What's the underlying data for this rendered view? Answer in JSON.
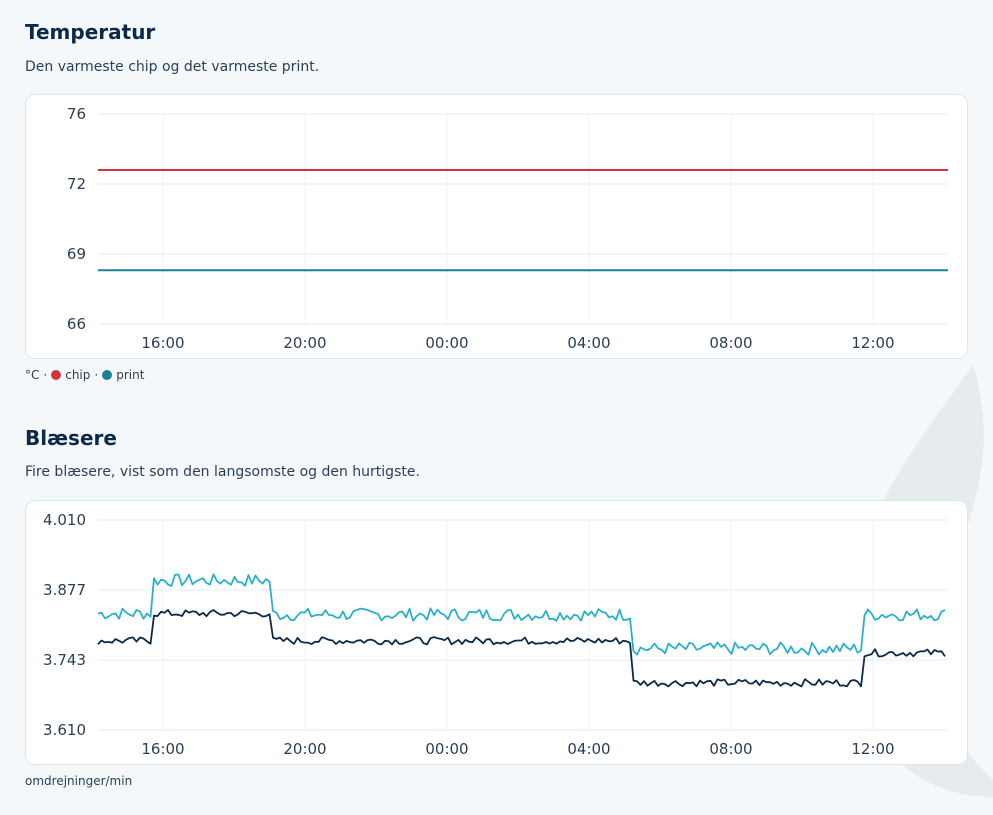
{
  "temperature": {
    "title": "Temperatur",
    "subtitle": "Den varmeste chip og det varmeste print.",
    "legend": {
      "unit": "°C",
      "sep": "·",
      "items": [
        {
          "label": "chip",
          "color": "#d0343f"
        },
        {
          "label": "print",
          "color": "#1b7f98"
        }
      ]
    }
  },
  "fans": {
    "title": "Blæsere",
    "subtitle": "Fire blæsere, vist som den langsomste og den hurtigste.",
    "unit_label": "omdrejninger/min"
  },
  "chart_data": [
    {
      "type": "line",
      "title": "Temperatur",
      "xlabel": "",
      "ylabel": "",
      "x_ticks": [
        "16:00",
        "20:00",
        "00:00",
        "04:00",
        "08:00",
        "12:00"
      ],
      "y_ticks": [
        "66",
        "69",
        "72",
        "76"
      ],
      "ylim": [
        66,
        75
      ],
      "grid": true,
      "series": [
        {
          "name": "chip",
          "color": "#d0343f",
          "values": [
            72.8,
            72.8
          ]
        },
        {
          "name": "print",
          "color": "#1b7f98",
          "values": [
            68.3,
            68.3
          ]
        }
      ]
    },
    {
      "type": "line",
      "title": "Blæsere",
      "xlabel": "",
      "ylabel": "omdrejninger/min",
      "x_ticks": [
        "16:00",
        "20:00",
        "00:00",
        "04:00",
        "08:00",
        "12:00"
      ],
      "y_ticks": [
        "3.610",
        "3.743",
        "3.877",
        "4.010"
      ],
      "ylim": [
        3610,
        4010
      ],
      "grid": true,
      "series": [
        {
          "color": "#2bb0c9",
          "segments": [
            {
              "from": "14:15",
              "to": "15:40",
              "value": 3832
            },
            {
              "from": "15:40",
              "to": "19:05",
              "value": 3895
            },
            {
              "from": "19:05",
              "to": "05:15",
              "value": 3830
            },
            {
              "from": "05:15",
              "to": "11:40",
              "value": 3765
            },
            {
              "from": "11:40",
              "to": "14:00",
              "value": 3830
            }
          ]
        },
        {
          "color": "#0b2a4a",
          "segments": [
            {
              "from": "14:15",
              "to": "15:40",
              "value": 3780
            },
            {
              "from": "15:40",
              "to": "19:05",
              "value": 3832
            },
            {
              "from": "19:05",
              "to": "05:15",
              "value": 3780
            },
            {
              "from": "05:15",
              "to": "11:40",
              "value": 3700
            },
            {
              "from": "11:40",
              "to": "14:00",
              "value": 3757
            }
          ]
        }
      ]
    }
  ]
}
